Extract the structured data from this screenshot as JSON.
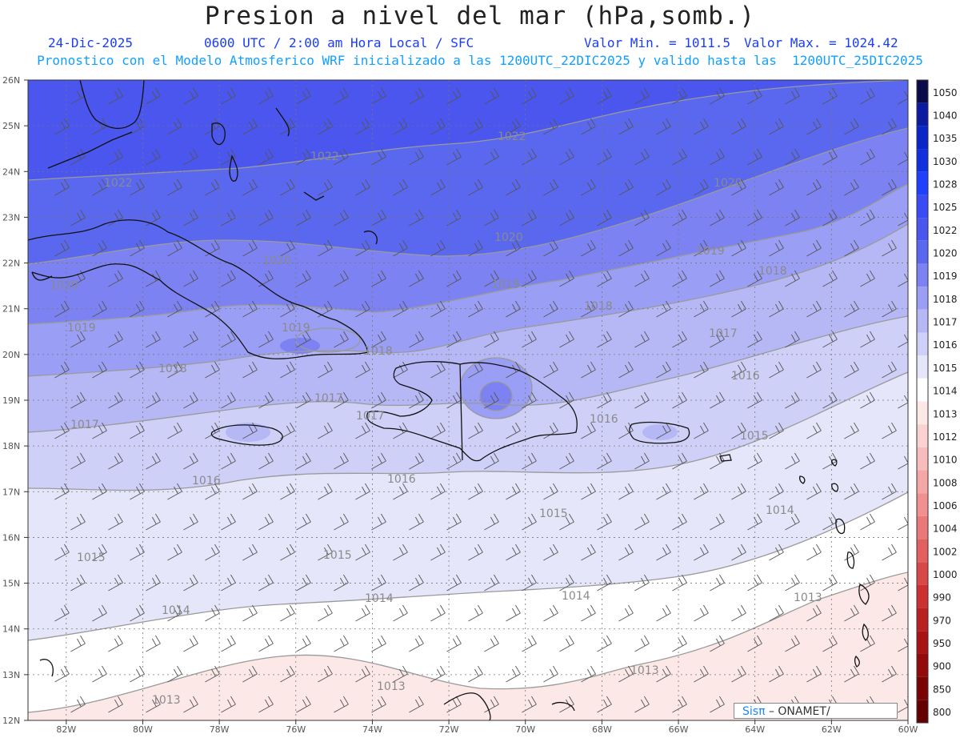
{
  "header": {
    "title": "Presion a nivel del mar (hPa,somb.)",
    "date": "24-Dic-2025",
    "time": "0600 UTC / 2:00 am Hora Local / SFC",
    "min": "Valor Min. = 1011.5",
    "max": "Valor Max. = 1024.42",
    "info": "Pronostico con el Modelo Atmosferico WRF inicializado a las 1200UTC_22DIC2025 y valido hasta las  1200UTC_25DIC2025"
  },
  "axes": {
    "lon_labels": [
      "82W",
      "80W",
      "78W",
      "76W",
      "74W",
      "72W",
      "70W",
      "68W",
      "66W",
      "64W",
      "62W",
      "60W"
    ],
    "lat_labels": [
      "26N",
      "25N",
      "24N",
      "23N",
      "22N",
      "21N",
      "20N",
      "19N",
      "18N",
      "17N",
      "16N",
      "15N",
      "14N",
      "13N",
      "12N"
    ]
  },
  "colorbar": {
    "labels": [
      "1050",
      "1040",
      "1035",
      "1030",
      "1028",
      "1025",
      "1022",
      "1020",
      "1019",
      "1018",
      "1017",
      "1016",
      "1015",
      "1014",
      "1013",
      "1012",
      "1010",
      "1008",
      "1006",
      "1004",
      "1002",
      "1000",
      "990",
      "970",
      "950",
      "900",
      "850",
      "800"
    ],
    "colors": [
      "#0a0a4a",
      "#0b1aa0",
      "#0a25c8",
      "#1030e0",
      "#2040ff",
      "#3a4cf5",
      "#4a56ee",
      "#5a68f0",
      "#7c82f2",
      "#9a9ef4",
      "#b6b8f6",
      "#cfd0f8",
      "#e6e6fb",
      "#ffffff",
      "#fde8e8",
      "#fbd2d2",
      "#f8bcbc",
      "#f5a6a6",
      "#f09090",
      "#ea7a7a",
      "#e26060",
      "#d84848",
      "#cc3030",
      "#bb2020",
      "#a81414",
      "#920a0a",
      "#7a0404",
      "#640000"
    ]
  },
  "contour_labels": {
    "c1022a": "1022",
    "c1022b": "1022",
    "c1022c": "1022",
    "c1020a": "1020",
    "c1020b": "1020",
    "c1020c": "1020",
    "c1020d": "1020",
    "c1019a": "1019",
    "c1019b": "1019",
    "c1019c": "1019",
    "c1019d": "1019",
    "c1018a": "1018",
    "c1018b": "1018",
    "c1018c": "1018",
    "c1018d": "1018",
    "c1017a": "1017",
    "c1017b": "1017",
    "c1017c": "1017",
    "c1017d": "1017",
    "c1016a": "1016",
    "c1016b": "1016",
    "c1016c": "1016",
    "c1016d": "1016",
    "c1015a": "1015",
    "c1015b": "1015",
    "c1015c": "1015",
    "c1015d": "1015",
    "c1014a": "1014",
    "c1014b": "1014",
    "c1014c": "1014",
    "c1014d": "1014",
    "c1013a": "1013",
    "c1013b": "1013",
    "c1013c": "1013",
    "c1013d": "1013"
  },
  "footer": {
    "logo_sis": "Sisπ",
    "logo_text": " – ONAMET/"
  }
}
